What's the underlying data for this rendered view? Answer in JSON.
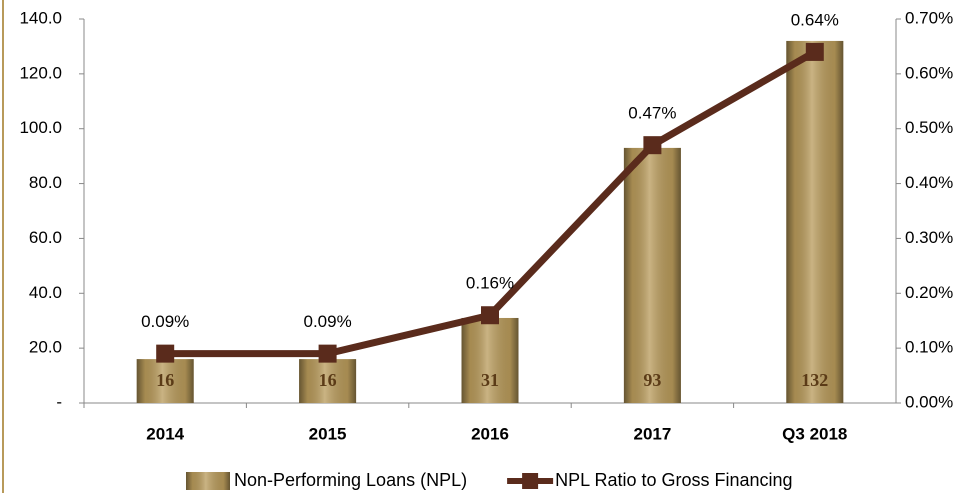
{
  "chart_data": {
    "type": "bar",
    "categories": [
      "2014",
      "2015",
      "2016",
      "2017",
      "Q3 2018"
    ],
    "series": [
      {
        "name": "Non-Performing Loans (NPL)",
        "type": "bar",
        "color": "#b89a5a",
        "values": [
          16,
          16,
          31,
          93,
          132
        ]
      },
      {
        "name": "NPL Ratio to Gross Financing",
        "type": "line",
        "axis": "y2",
        "color": "#5a2b1c",
        "values": [
          0.09,
          0.09,
          0.16,
          0.47,
          0.64
        ],
        "value_labels": [
          "0.09%",
          "0.09%",
          "0.16%",
          "0.47%",
          "0.64%"
        ]
      }
    ],
    "ylim": [
      0,
      140
    ],
    "yticks": [
      {
        "value": 0,
        "label": "-"
      },
      {
        "value": 20,
        "label": "20.0"
      },
      {
        "value": 40,
        "label": "40.0"
      },
      {
        "value": 60,
        "label": "60.0"
      },
      {
        "value": 80,
        "label": "80.0"
      },
      {
        "value": 100,
        "label": "100.0"
      },
      {
        "value": 120,
        "label": "120.0"
      },
      {
        "value": 140,
        "label": "140.0"
      }
    ],
    "y2lim": [
      0,
      0.7
    ],
    "y2ticks": [
      {
        "value": 0,
        "label": "0.00%"
      },
      {
        "value": 0.1,
        "label": "0.10%"
      },
      {
        "value": 0.2,
        "label": "0.20%"
      },
      {
        "value": 0.3,
        "label": "0.30%"
      },
      {
        "value": 0.4,
        "label": "0.40%"
      },
      {
        "value": 0.5,
        "label": "0.50%"
      },
      {
        "value": 0.6,
        "label": "0.60%"
      },
      {
        "value": 0.7,
        "label": "0.70%"
      }
    ],
    "legend": "bottom"
  }
}
